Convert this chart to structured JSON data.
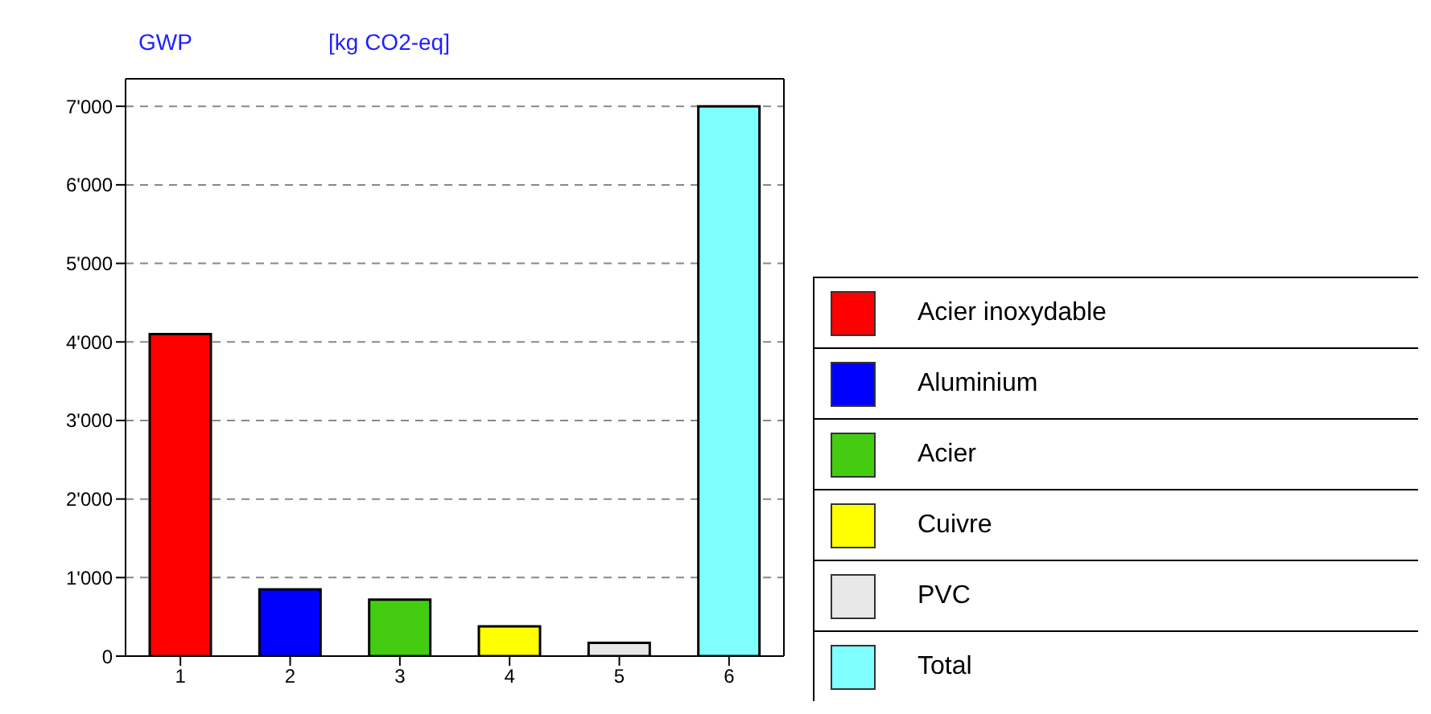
{
  "chart_data": {
    "type": "bar",
    "title": "GWP",
    "ylabel": "[kg CO2-eq]",
    "categories": [
      "1",
      "2",
      "3",
      "4",
      "5",
      "6"
    ],
    "stacked": true,
    "series": [
      {
        "name": "Acier inoxydable",
        "color": "#ff0000",
        "values": [
          4100,
          null,
          null,
          null,
          null,
          null
        ]
      },
      {
        "name": "Aluminium",
        "color": "#0000ff",
        "values": [
          null,
          850,
          null,
          null,
          null,
          null
        ]
      },
      {
        "name": "Acier",
        "color": "#44cc11",
        "values": [
          null,
          null,
          720,
          null,
          null,
          null
        ]
      },
      {
        "name": "Cuivre",
        "color": "#ffff00",
        "values": [
          null,
          null,
          null,
          380,
          null,
          null
        ]
      },
      {
        "name": "PVC",
        "color": "#e8e8e8",
        "values": [
          null,
          null,
          null,
          null,
          170,
          null
        ]
      },
      {
        "name": "Total",
        "color": "#80ffff",
        "values": [
          null,
          null,
          null,
          null,
          null,
          7000
        ]
      }
    ],
    "ylim": [
      0,
      7350
    ],
    "yticks": [
      {
        "value": 0,
        "label": "0"
      },
      {
        "value": 1000,
        "label": "1'000"
      },
      {
        "value": 2000,
        "label": "2'000"
      },
      {
        "value": 3000,
        "label": "3'000"
      },
      {
        "value": 4000,
        "label": "4'000"
      },
      {
        "value": 5000,
        "label": "5'000"
      },
      {
        "value": 6000,
        "label": "6'000"
      },
      {
        "value": 7000,
        "label": "7'000"
      }
    ],
    "grid": "y",
    "legend": "bottom right"
  }
}
